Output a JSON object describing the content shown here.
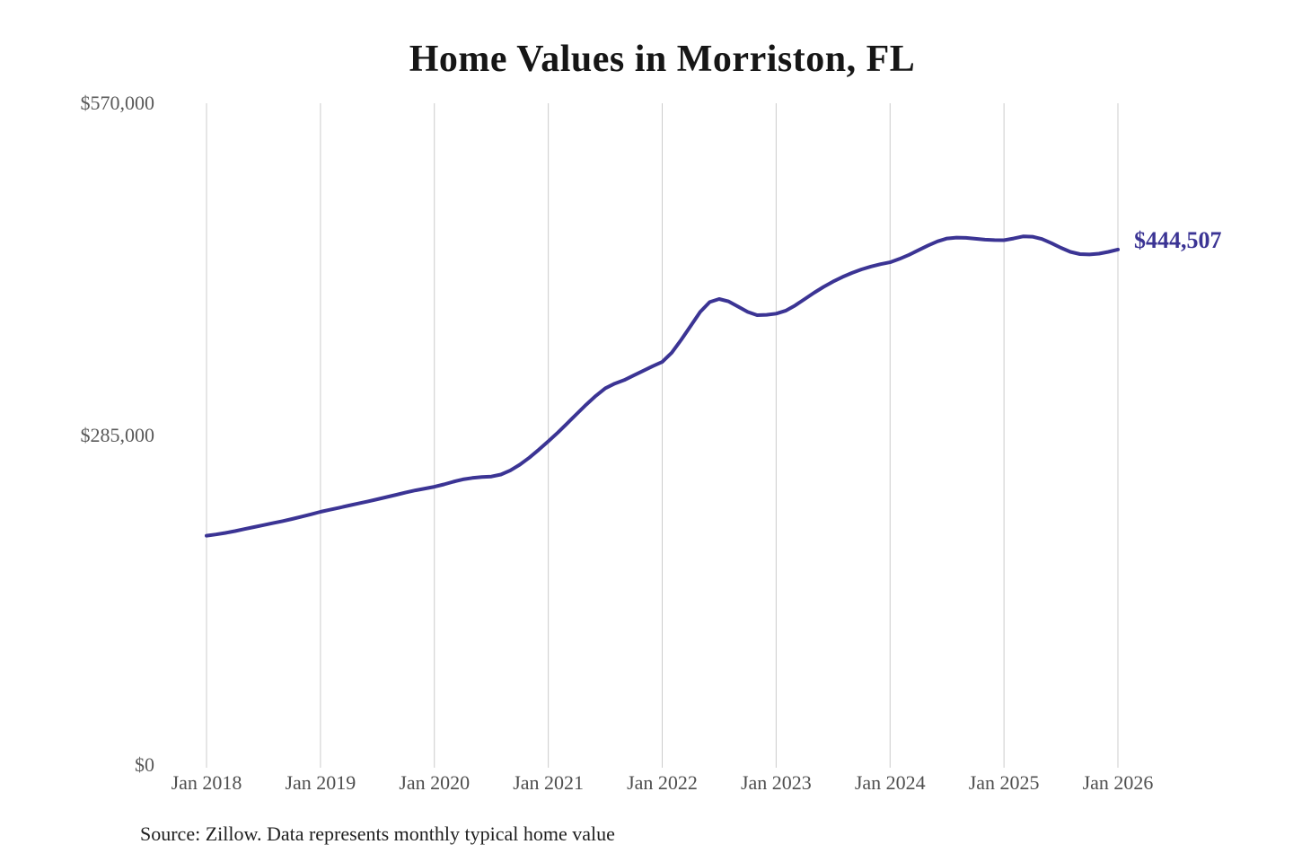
{
  "page": {
    "title": "Home Values in Morriston, FL",
    "source_note": "Source: Zillow. Data represents monthly typical home value"
  },
  "colors": {
    "line": "#3b3494",
    "grid": "#cccccc",
    "title_text": "#161616",
    "y_axis_text": "#595959",
    "x_axis_text": "#4f4f4f",
    "source_text": "#1f1f1f",
    "background": "#ffffff"
  },
  "chart_data": {
    "type": "line",
    "title": "Home Values in Morriston, FL",
    "xlabel": "",
    "ylabel": "",
    "x_tick_labels": [
      "Jan 2018",
      "Jan 2019",
      "Jan 2020",
      "Jan 2021",
      "Jan 2022",
      "Jan 2023",
      "Jan 2024",
      "Jan 2025",
      "Jan 2026"
    ],
    "y_tick_labels": [
      "$0",
      "$285,000",
      "$570,000"
    ],
    "y_tick_values": [
      0,
      285000,
      570000
    ],
    "ylim": [
      0,
      570000
    ],
    "grid": "vertical-only",
    "legend_position": "none",
    "x_start": "Jan 2018",
    "x_end": "Jan 2026",
    "x_interval": "monthly",
    "series": [
      {
        "name": "Monthly typical home value",
        "color": "#3b3494",
        "values": [
          199000,
          200100,
          201400,
          203000,
          204700,
          206400,
          208100,
          209800,
          211500,
          213400,
          215400,
          217400,
          219500,
          221300,
          223100,
          224900,
          226700,
          228500,
          230300,
          232200,
          234200,
          236200,
          237900,
          239500,
          241000,
          243000,
          245300,
          247300,
          248600,
          249300,
          249800,
          251500,
          255000,
          260000,
          266000,
          272800,
          280000,
          287500,
          295500,
          303500,
          311500,
          319000,
          325500,
          329500,
          332500,
          336500,
          340500,
          344500,
          348100,
          356000,
          367000,
          379000,
          391000,
          399500,
          402100,
          400000,
          395500,
          391000,
          388200,
          388500,
          389500,
          392000,
          396500,
          402000,
          407500,
          412500,
          417000,
          421000,
          424500,
          427500,
          430000,
          432000,
          433600,
          436500,
          440000,
          444000,
          448000,
          451500,
          454000,
          454800,
          454500,
          453800,
          453000,
          452600,
          452500,
          454000,
          455800,
          455500,
          453500,
          450000,
          446000,
          442500,
          440600,
          440300,
          441000,
          442500,
          444507
        ]
      }
    ],
    "end_label": {
      "text": "$444,507",
      "value": 444507
    }
  }
}
